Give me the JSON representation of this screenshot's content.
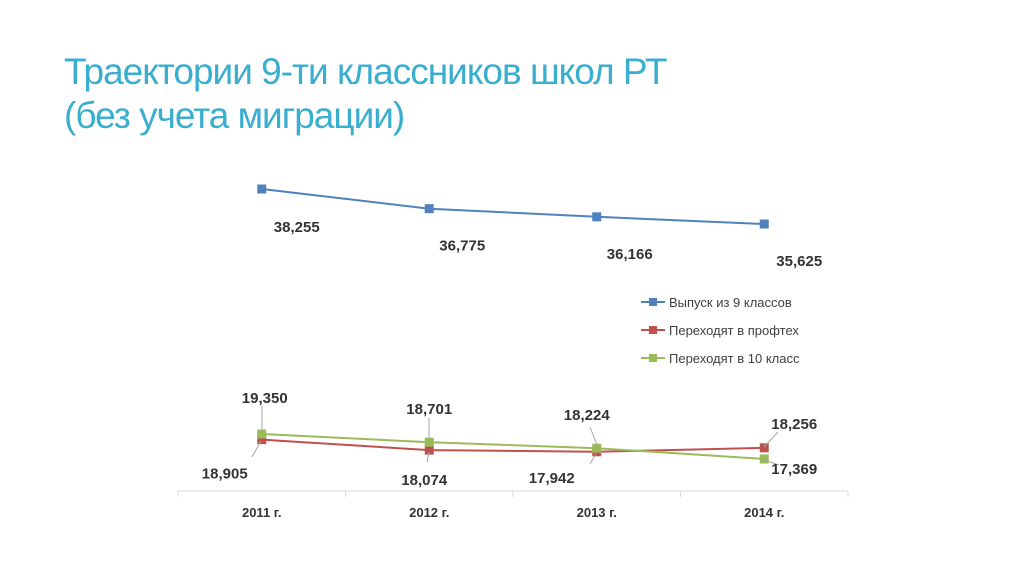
{
  "title": {
    "line1": "Траектории 9-ти классников школ РТ",
    "line2": "(без учета миграции)"
  },
  "chart_data": {
    "type": "line",
    "categories": [
      "2011 г.",
      "2012 г.",
      "2013 г.",
      "2014 г."
    ],
    "legend_position": "right",
    "grid": false,
    "series": [
      {
        "name": "Выпуск из 9 классов",
        "color": "#4f81bd",
        "values": [
          38255,
          36775,
          36166,
          35625
        ],
        "labels": [
          "38,255",
          "36,775",
          "36,166",
          "35,625"
        ]
      },
      {
        "name": "Переходят в профтех",
        "color": "#c0504d",
        "values": [
          18905,
          18074,
          17942,
          18256
        ],
        "labels": [
          "18,905",
          "18,074",
          "17,942",
          "18,256"
        ]
      },
      {
        "name": "Переходят в 10 класс",
        "color": "#9bbb59",
        "values": [
          19350,
          18701,
          18224,
          17369
        ],
        "labels": [
          "19,350",
          "18,701",
          "18,224",
          "17,369"
        ]
      }
    ]
  }
}
